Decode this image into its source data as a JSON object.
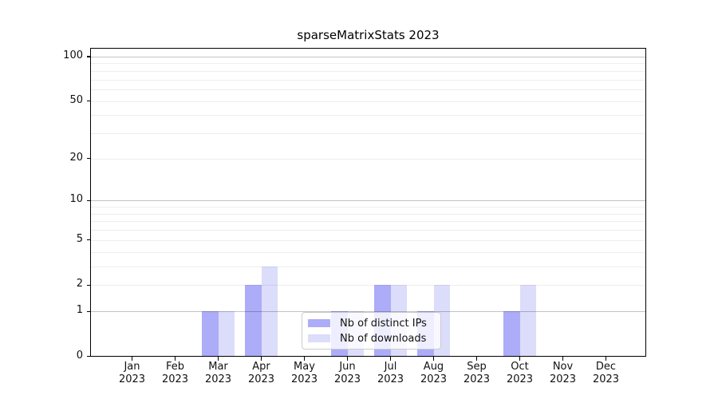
{
  "chart_data": {
    "type": "bar",
    "title": "sparseMatrixStats 2023",
    "xlabel": "",
    "ylabel": "",
    "months": [
      "Jan",
      "Feb",
      "Mar",
      "Apr",
      "May",
      "Jun",
      "Jul",
      "Aug",
      "Sep",
      "Oct",
      "Nov",
      "Dec"
    ],
    "year_label": "2023",
    "series": [
      {
        "name": "Nb of distinct IPs",
        "color": "#acacf8",
        "values": [
          0,
          0,
          1,
          2,
          0,
          1,
          2,
          1,
          0,
          1,
          0,
          0
        ]
      },
      {
        "name": "Nb of downloads",
        "color": "#dcdcfb",
        "values": [
          0,
          0,
          1,
          3,
          0,
          1,
          2,
          2,
          0,
          2,
          0,
          0
        ]
      }
    ],
    "yscale": "log1p",
    "ylim": [
      0,
      115
    ],
    "yticks": [
      0,
      1,
      2,
      5,
      10,
      20,
      50,
      100
    ],
    "gridlines_major": [
      1,
      10,
      100
    ],
    "gridlines_minor": [
      2,
      3,
      4,
      5,
      6,
      7,
      8,
      9,
      20,
      30,
      40,
      50,
      60,
      70,
      80,
      90
    ],
    "grid": true,
    "legend_position": "lower-center-inside"
  }
}
